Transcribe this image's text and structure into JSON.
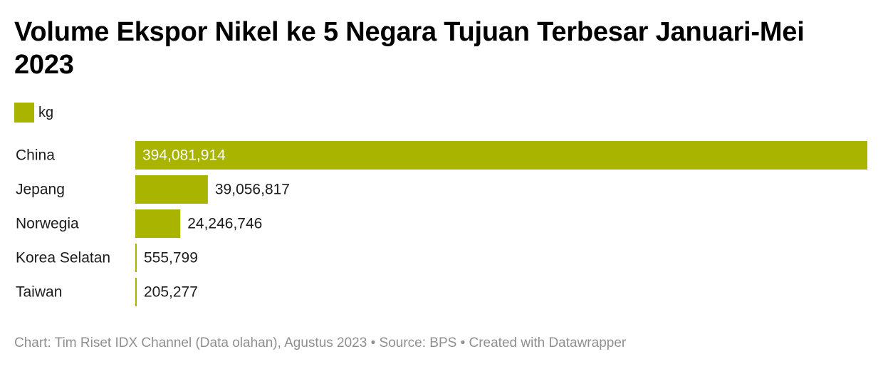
{
  "title": "Volume Ekspor Nikel ke 5 Negara Tujuan Terbesar Januari-Mei 2023",
  "legend": {
    "label": "kg",
    "color": "#a8b400"
  },
  "footer": {
    "text": "Chart: Tim Riset IDX Channel (Data olahan), Agustus 2023 • Source: BPS • Created with Datawrapper"
  },
  "colors": {
    "bar": "#a8b400",
    "label_inside": "#ffffff",
    "label_outside": "#1d1d1d",
    "axis_text": "#1d1d1d"
  },
  "chart_data": {
    "type": "bar",
    "orientation": "horizontal",
    "categories": [
      "China",
      "Jepang",
      "Norwegia",
      "Korea Selatan",
      "Taiwan"
    ],
    "series": [
      {
        "name": "kg",
        "values": [
          394081914,
          39056817,
          24246746,
          555799,
          205277
        ],
        "labels": [
          "394,081,914",
          "39,056,817",
          "24,246,746",
          "555,799",
          "205,277"
        ]
      }
    ],
    "xlim": [
      0,
      394081914
    ],
    "grid": false,
    "legend_position": "top-left"
  }
}
